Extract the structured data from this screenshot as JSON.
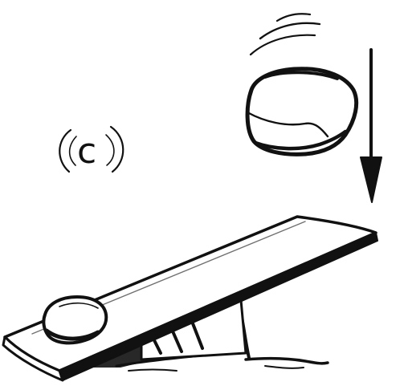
{
  "figure": {
    "panel_label": "c"
  },
  "colors": {
    "ink": "#111111",
    "background": "#ffffff"
  },
  "icons": {
    "motion_arrow": "arrow-down-icon",
    "falling_object": "falling-rock-icon",
    "resting_object": "resting-rock-icon"
  }
}
